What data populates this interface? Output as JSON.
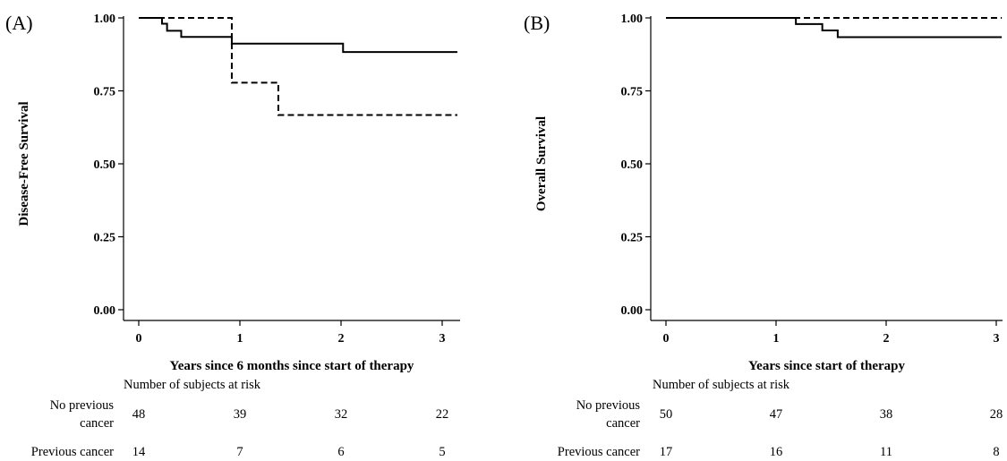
{
  "chart_data": [
    {
      "type": "line",
      "step": true,
      "panel_label": "(A)",
      "xlabel": "Years since 6 months since start of therapy",
      "ylabel": "Disease-Free Survival",
      "xlim": [
        0,
        3.15
      ],
      "ylim": [
        0,
        1
      ],
      "x_ticks": [
        0,
        1,
        2,
        3
      ],
      "x_tick_labels": [
        "0",
        "1",
        "2",
        "3"
      ],
      "y_ticks": [
        0,
        0.25,
        0.5,
        0.75,
        1
      ],
      "y_tick_labels": [
        "0.00",
        "0.25",
        "0.50",
        "0.75",
        "1.00"
      ],
      "grid": false,
      "series": [
        {
          "style": "solid",
          "x": [
            0,
            0.23,
            0.28,
            0.42,
            0.92,
            2.02,
            3.15
          ],
          "y": [
            1.0,
            0.98,
            0.956,
            0.935,
            0.912,
            0.883,
            0.883
          ]
        },
        {
          "style": "dashed",
          "x": [
            0,
            0.92,
            1.38,
            3.15
          ],
          "y": [
            1.0,
            0.778,
            0.667,
            0.667
          ]
        }
      ],
      "risk_table": {
        "title": "Number of subjects at risk",
        "rows": [
          {
            "label_lines": [
              "No previous",
              "cancer"
            ],
            "counts": [
              "48",
              "39",
              "32",
              "22"
            ]
          },
          {
            "label_lines": [
              "Previous cancer"
            ],
            "counts": [
              "14",
              "7",
              "6",
              "5"
            ]
          }
        ]
      }
    },
    {
      "type": "line",
      "step": true,
      "panel_label": "(B)",
      "xlabel": "Years since start of therapy",
      "ylabel": "Overall Survival",
      "xlim": [
        0,
        3.05
      ],
      "ylim": [
        0,
        1
      ],
      "x_ticks": [
        0,
        1,
        2,
        3
      ],
      "x_tick_labels": [
        "0",
        "1",
        "2",
        "3"
      ],
      "y_ticks": [
        0,
        0.25,
        0.5,
        0.75,
        1
      ],
      "y_tick_labels": [
        "0.00",
        "0.25",
        "0.50",
        "0.75",
        "1.00"
      ],
      "grid": false,
      "series": [
        {
          "style": "solid",
          "x": [
            0,
            1.18,
            1.42,
            1.56,
            3.05
          ],
          "y": [
            1.0,
            0.979,
            0.957,
            0.934,
            0.934
          ]
        },
        {
          "style": "dashed",
          "x": [
            0,
            3.05
          ],
          "y": [
            1.0,
            1.0
          ]
        }
      ],
      "risk_table": {
        "title": "Number of subjects at risk",
        "rows": [
          {
            "label_lines": [
              "No previous",
              "cancer"
            ],
            "counts": [
              "50",
              "47",
              "38",
              "28"
            ]
          },
          {
            "label_lines": [
              "Previous cancer"
            ],
            "counts": [
              "17",
              "16",
              "11",
              "8"
            ]
          }
        ]
      }
    }
  ]
}
